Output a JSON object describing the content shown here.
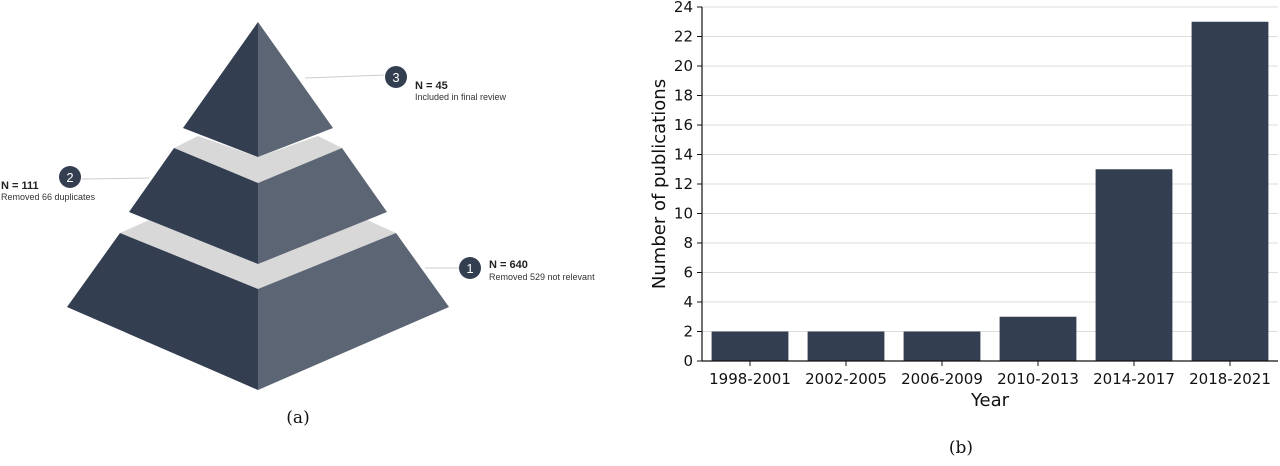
{
  "panel_a": {
    "caption": "(a)",
    "stages": [
      {
        "number": "1",
        "title": "N = 640",
        "description": "Removed 529 not relevant"
      },
      {
        "number": "2",
        "title": "N = 111",
        "description": "Removed 66 duplicates"
      },
      {
        "number": "3",
        "title": "N = 45",
        "description": "Included in final review"
      }
    ],
    "colors": {
      "dark": "#333e50",
      "light": "#5b6573",
      "band": "#d8d8d8",
      "leader": "#cccccc"
    }
  },
  "panel_b": {
    "caption": "(b)"
  },
  "chart_data": {
    "type": "bar",
    "categories": [
      "1998-2001",
      "2002-2005",
      "2006-2009",
      "2010-2013",
      "2014-2017",
      "2018-2021"
    ],
    "values": [
      2,
      2,
      2,
      3,
      13,
      23
    ],
    "xlabel": "Year",
    "ylabel": "Number of publications",
    "ylim": [
      0,
      24
    ],
    "yticks": [
      0,
      2,
      4,
      6,
      8,
      10,
      12,
      14,
      16,
      18,
      20,
      22,
      24
    ],
    "grid": "horizontal",
    "bar_color": "#333e50"
  }
}
